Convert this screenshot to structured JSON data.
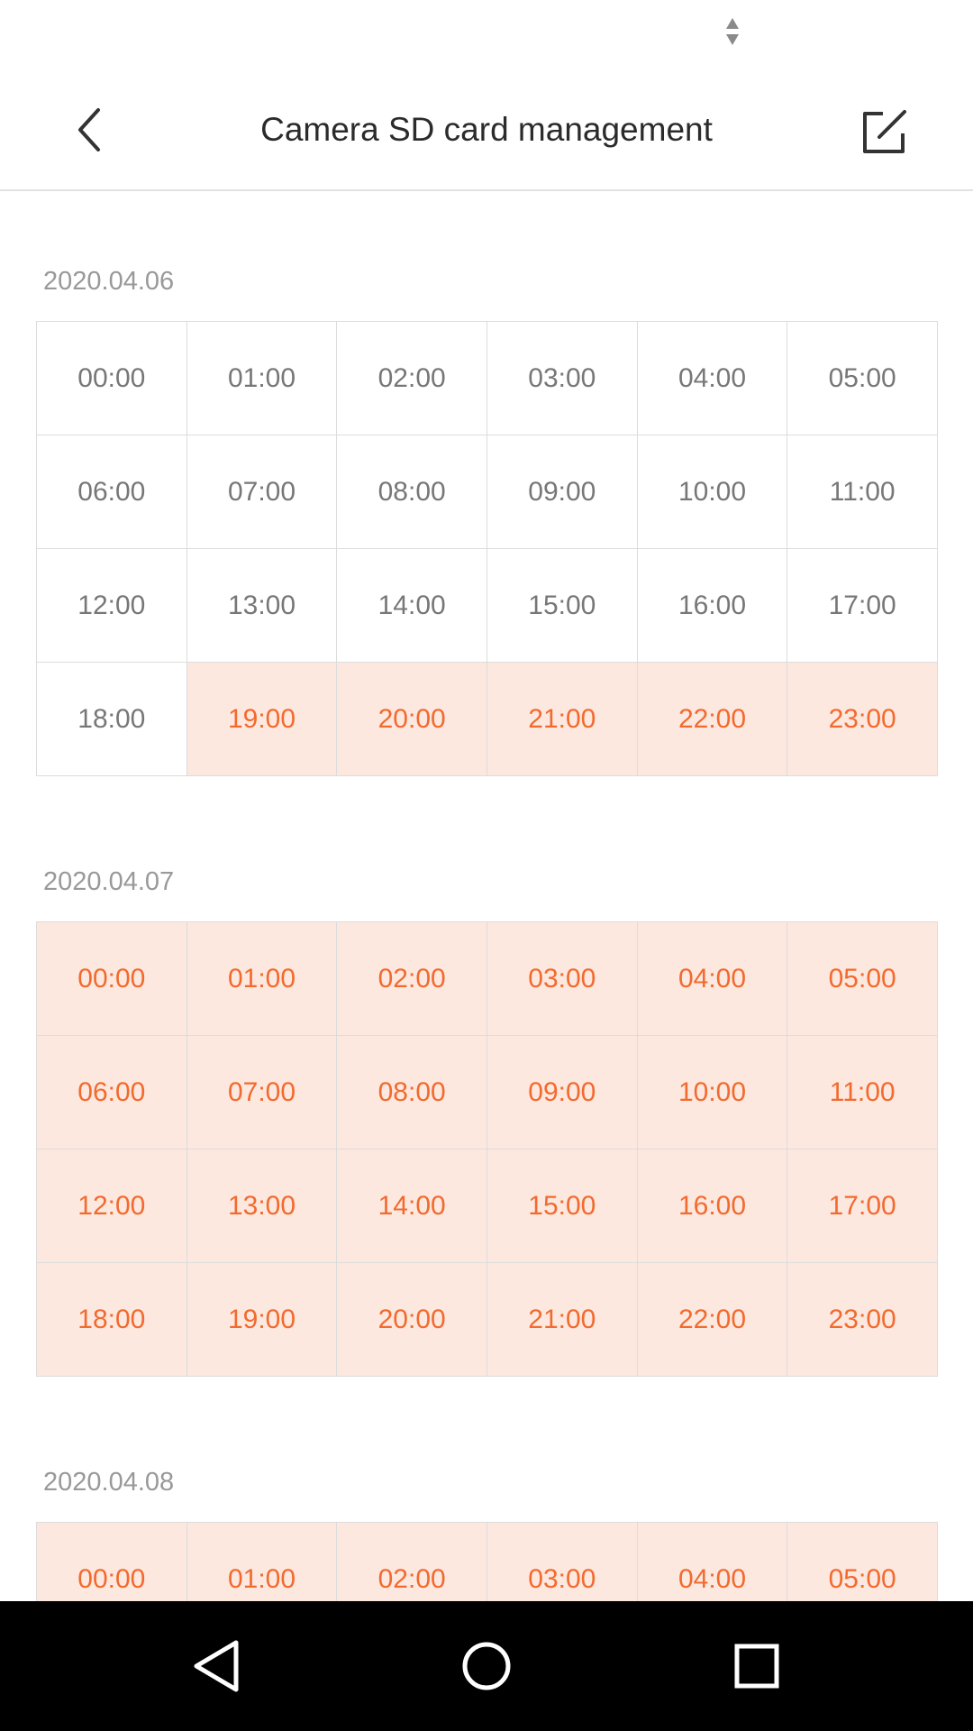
{
  "status_bar": {
    "icon": "data-activity-icon"
  },
  "header": {
    "title": "Camera SD card management",
    "back_icon": "chevron-left-icon",
    "edit_icon": "edit-icon"
  },
  "days": [
    {
      "date": "2020.04.06",
      "slots": [
        {
          "time": "00:00",
          "recorded": false
        },
        {
          "time": "01:00",
          "recorded": false
        },
        {
          "time": "02:00",
          "recorded": false
        },
        {
          "time": "03:00",
          "recorded": false
        },
        {
          "time": "04:00",
          "recorded": false
        },
        {
          "time": "05:00",
          "recorded": false
        },
        {
          "time": "06:00",
          "recorded": false
        },
        {
          "time": "07:00",
          "recorded": false
        },
        {
          "time": "08:00",
          "recorded": false
        },
        {
          "time": "09:00",
          "recorded": false
        },
        {
          "time": "10:00",
          "recorded": false
        },
        {
          "time": "11:00",
          "recorded": false
        },
        {
          "time": "12:00",
          "recorded": false
        },
        {
          "time": "13:00",
          "recorded": false
        },
        {
          "time": "14:00",
          "recorded": false
        },
        {
          "time": "15:00",
          "recorded": false
        },
        {
          "time": "16:00",
          "recorded": false
        },
        {
          "time": "17:00",
          "recorded": false
        },
        {
          "time": "18:00",
          "recorded": false
        },
        {
          "time": "19:00",
          "recorded": true
        },
        {
          "time": "20:00",
          "recorded": true
        },
        {
          "time": "21:00",
          "recorded": true
        },
        {
          "time": "22:00",
          "recorded": true
        },
        {
          "time": "23:00",
          "recorded": true
        }
      ]
    },
    {
      "date": "2020.04.07",
      "slots": [
        {
          "time": "00:00",
          "recorded": true
        },
        {
          "time": "01:00",
          "recorded": true
        },
        {
          "time": "02:00",
          "recorded": true
        },
        {
          "time": "03:00",
          "recorded": true
        },
        {
          "time": "04:00",
          "recorded": true
        },
        {
          "time": "05:00",
          "recorded": true
        },
        {
          "time": "06:00",
          "recorded": true
        },
        {
          "time": "07:00",
          "recorded": true
        },
        {
          "time": "08:00",
          "recorded": true
        },
        {
          "time": "09:00",
          "recorded": true
        },
        {
          "time": "10:00",
          "recorded": true
        },
        {
          "time": "11:00",
          "recorded": true
        },
        {
          "time": "12:00",
          "recorded": true
        },
        {
          "time": "13:00",
          "recorded": true
        },
        {
          "time": "14:00",
          "recorded": true
        },
        {
          "time": "15:00",
          "recorded": true
        },
        {
          "time": "16:00",
          "recorded": true
        },
        {
          "time": "17:00",
          "recorded": true
        },
        {
          "time": "18:00",
          "recorded": true
        },
        {
          "time": "19:00",
          "recorded": true
        },
        {
          "time": "20:00",
          "recorded": true
        },
        {
          "time": "21:00",
          "recorded": true
        },
        {
          "time": "22:00",
          "recorded": true
        },
        {
          "time": "23:00",
          "recorded": true
        }
      ]
    },
    {
      "date": "2020.04.08",
      "slots": [
        {
          "time": "00:00",
          "recorded": true
        },
        {
          "time": "01:00",
          "recorded": true
        },
        {
          "time": "02:00",
          "recorded": true
        },
        {
          "time": "03:00",
          "recorded": true
        },
        {
          "time": "04:00",
          "recorded": true
        },
        {
          "time": "05:00",
          "recorded": true
        }
      ]
    }
  ],
  "nav_bar": {
    "back_icon": "nav-back-icon",
    "home_icon": "nav-home-icon",
    "recents_icon": "nav-recents-icon"
  },
  "colors": {
    "accent": "#f26a2e",
    "recorded_bg": "#fde8df",
    "cell_border": "#dcdcdc",
    "inactive_text": "#777777",
    "date_text": "#999999"
  }
}
